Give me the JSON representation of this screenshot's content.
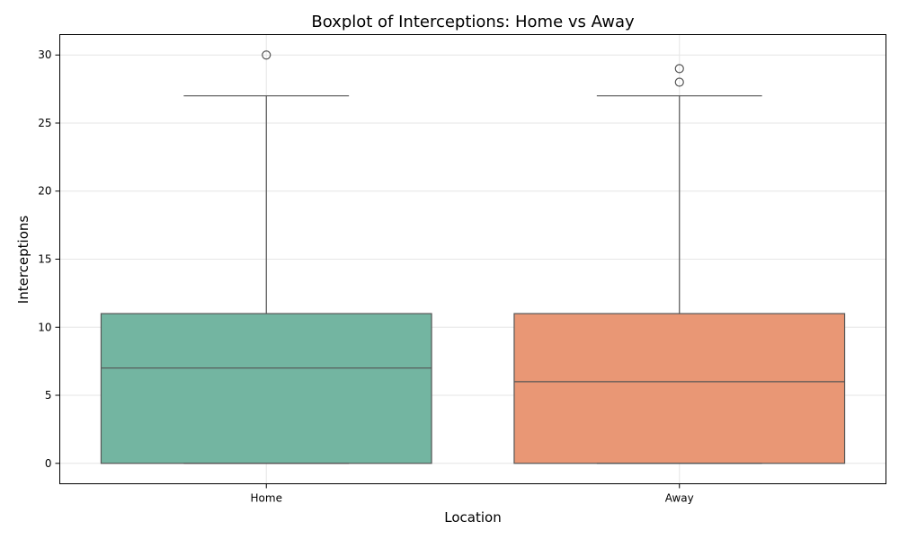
{
  "chart_data": {
    "type": "boxplot",
    "title": "Boxplot of Interceptions: Home vs Away",
    "xlabel": "Location",
    "ylabel": "Interceptions",
    "categories": [
      "Home",
      "Away"
    ],
    "ylim": [
      -1.5,
      31.5
    ],
    "yticks": [
      0,
      5,
      10,
      15,
      20,
      25,
      30
    ],
    "ytick_labels": [
      "0",
      "5",
      "10",
      "15",
      "20",
      "25",
      "30"
    ],
    "grid": true,
    "series": [
      {
        "category": "Home",
        "whisker_low": 0,
        "q1": 0,
        "median": 7,
        "q3": 11,
        "whisker_high": 27,
        "outliers": [
          30
        ],
        "color": "#73b5a1"
      },
      {
        "category": "Away",
        "whisker_low": 0,
        "q1": 0,
        "median": 6,
        "q3": 11,
        "whisker_high": 27,
        "outliers": [
          28,
          29
        ],
        "color": "#e99775"
      }
    ],
    "line_color": "#555555",
    "grid_color": "#e6e6e6"
  }
}
